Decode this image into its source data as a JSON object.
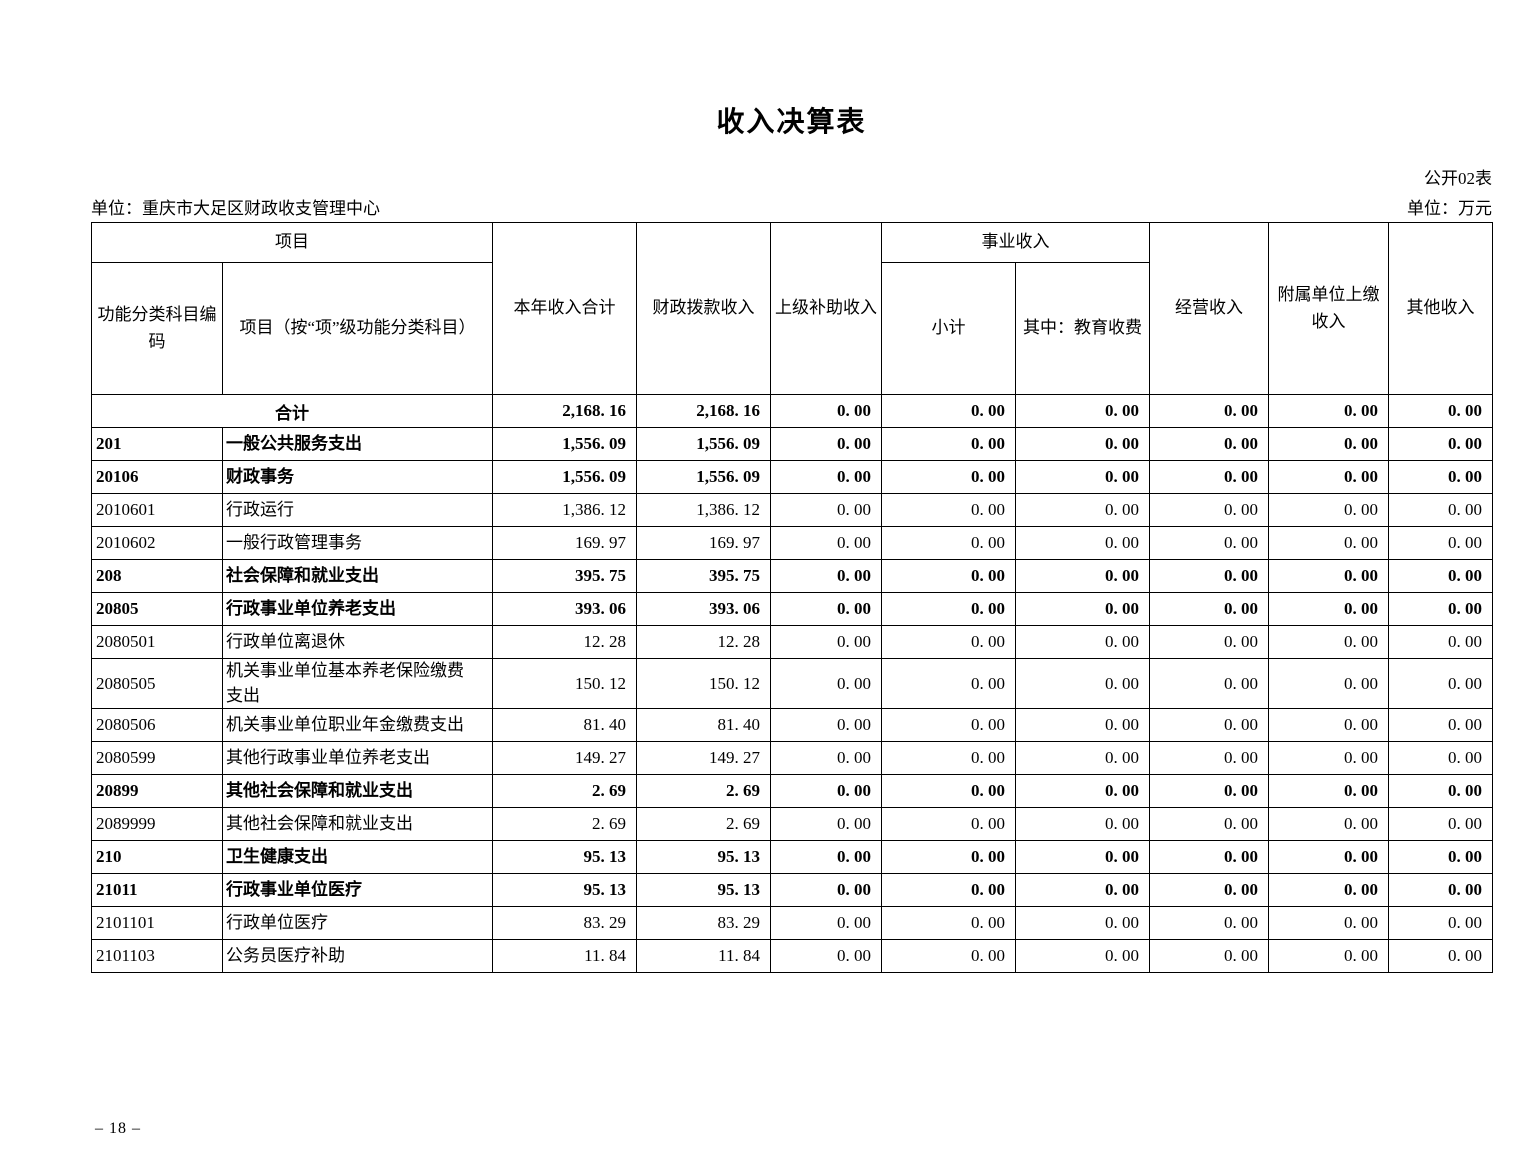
{
  "page": {
    "title": "收入决算表",
    "table_label": "公开02表",
    "org_label": "单位：重庆市大足区财政收支管理中心",
    "unit_label": "单位：万元",
    "page_number": "– 18 –"
  },
  "table": {
    "header": {
      "group_item": "项目",
      "col_code": "功能分类科目编码",
      "col_item": "项目（按“项”级功能分类科目）",
      "col_total": "本年收入合计",
      "col_fiscal": "财政拨款收入",
      "col_superior": "上级补助收入",
      "group_business": "事业收入",
      "col_subtotal": "小计",
      "col_education": "其中：教育收费",
      "col_operating": "经营收入",
      "col_affiliated": "附属单位上缴收入",
      "col_other": "其他收入"
    },
    "rows": [
      {
        "code": "",
        "name": "合计",
        "bold": true,
        "total": true,
        "values": [
          "2,168. 16",
          "2,168. 16",
          "0. 00",
          "0. 00",
          "0. 00",
          "0. 00",
          "0. 00",
          "0. 00"
        ]
      },
      {
        "code": "201",
        "name": "一般公共服务支出",
        "bold": true,
        "values": [
          "1,556. 09",
          "1,556. 09",
          "0. 00",
          "0. 00",
          "0. 00",
          "0. 00",
          "0. 00",
          "0. 00"
        ]
      },
      {
        "code": "20106",
        "name": "财政事务",
        "bold": true,
        "values": [
          "1,556. 09",
          "1,556. 09",
          "0. 00",
          "0. 00",
          "0. 00",
          "0. 00",
          "0. 00",
          "0. 00"
        ]
      },
      {
        "code": "2010601",
        "name": "行政运行",
        "bold": false,
        "values": [
          "1,386. 12",
          "1,386. 12",
          "0. 00",
          "0. 00",
          "0. 00",
          "0. 00",
          "0. 00",
          "0. 00"
        ]
      },
      {
        "code": "2010602",
        "name": "一般行政管理事务",
        "bold": false,
        "values": [
          "169. 97",
          "169. 97",
          "0. 00",
          "0. 00",
          "0. 00",
          "0. 00",
          "0. 00",
          "0. 00"
        ]
      },
      {
        "code": "208",
        "name": "社会保障和就业支出",
        "bold": true,
        "values": [
          "395. 75",
          "395. 75",
          "0. 00",
          "0. 00",
          "0. 00",
          "0. 00",
          "0. 00",
          "0. 00"
        ]
      },
      {
        "code": "20805",
        "name": "行政事业单位养老支出",
        "bold": true,
        "values": [
          "393. 06",
          "393. 06",
          "0. 00",
          "0. 00",
          "0. 00",
          "0. 00",
          "0. 00",
          "0. 00"
        ]
      },
      {
        "code": "2080501",
        "name": "行政单位离退休",
        "bold": false,
        "values": [
          "12. 28",
          "12. 28",
          "0. 00",
          "0. 00",
          "0. 00",
          "0. 00",
          "0. 00",
          "0. 00"
        ]
      },
      {
        "code": "2080505",
        "name": "机关事业单位基本养老保险缴费支出",
        "bold": false,
        "values": [
          "150. 12",
          "150. 12",
          "0. 00",
          "0. 00",
          "0. 00",
          "0. 00",
          "0. 00",
          "0. 00"
        ]
      },
      {
        "code": "2080506",
        "name": "机关事业单位职业年金缴费支出",
        "bold": false,
        "values": [
          "81. 40",
          "81. 40",
          "0. 00",
          "0. 00",
          "0. 00",
          "0. 00",
          "0. 00",
          "0. 00"
        ]
      },
      {
        "code": "2080599",
        "name": "其他行政事业单位养老支出",
        "bold": false,
        "values": [
          "149. 27",
          "149. 27",
          "0. 00",
          "0. 00",
          "0. 00",
          "0. 00",
          "0. 00",
          "0. 00"
        ]
      },
      {
        "code": "20899",
        "name": "其他社会保障和就业支出",
        "bold": true,
        "values": [
          "2. 69",
          "2. 69",
          "0. 00",
          "0. 00",
          "0. 00",
          "0. 00",
          "0. 00",
          "0. 00"
        ]
      },
      {
        "code": "2089999",
        "name": "其他社会保障和就业支出",
        "bold": false,
        "values": [
          "2. 69",
          "2. 69",
          "0. 00",
          "0. 00",
          "0. 00",
          "0. 00",
          "0. 00",
          "0. 00"
        ]
      },
      {
        "code": "210",
        "name": "卫生健康支出",
        "bold": true,
        "values": [
          "95. 13",
          "95. 13",
          "0. 00",
          "0. 00",
          "0. 00",
          "0. 00",
          "0. 00",
          "0. 00"
        ]
      },
      {
        "code": "21011",
        "name": "行政事业单位医疗",
        "bold": true,
        "values": [
          "95. 13",
          "95. 13",
          "0. 00",
          "0. 00",
          "0. 00",
          "0. 00",
          "0. 00",
          "0. 00"
        ]
      },
      {
        "code": "2101101",
        "name": "行政单位医疗",
        "bold": false,
        "values": [
          "83. 29",
          "83. 29",
          "0. 00",
          "0. 00",
          "0. 00",
          "0. 00",
          "0. 00",
          "0. 00"
        ]
      },
      {
        "code": "2101103",
        "name": "公务员医疗补助",
        "bold": false,
        "values": [
          "11. 84",
          "11. 84",
          "0. 00",
          "0. 00",
          "0. 00",
          "0. 00",
          "0. 00",
          "0. 00"
        ]
      }
    ]
  }
}
